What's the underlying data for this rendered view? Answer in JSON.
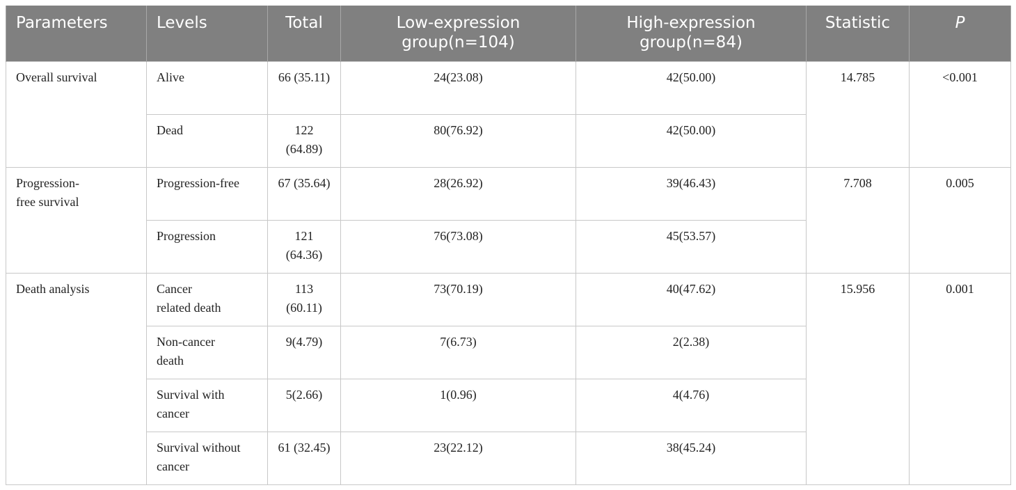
{
  "columns": [
    "Parameters",
    "Levels",
    "Total",
    "Low-expression group(n=104)",
    "High-expression group(n=84)",
    "Statistic",
    "P"
  ],
  "groups": [
    {
      "parameter": "Overall survival",
      "statistic": "14.785",
      "p": "<0.001",
      "rows": [
        {
          "level": "Alive",
          "total": "66 (35.11)",
          "low": "24(23.08)",
          "high": "42(50.00)"
        },
        {
          "level": "Dead",
          "total": "122 (64.89)",
          "low": "80(76.92)",
          "high": "42(50.00)"
        }
      ]
    },
    {
      "parameter": "Progression-free survival",
      "statistic": "7.708",
      "p": "0.005",
      "rows": [
        {
          "level": "Progression-free",
          "total": "67 (35.64)",
          "low": "28(26.92)",
          "high": "39(46.43)"
        },
        {
          "level": "Progression",
          "total": "121 (64.36)",
          "low": "76(73.08)",
          "high": "45(53.57)"
        }
      ]
    },
    {
      "parameter": "Death analysis",
      "statistic": "15.956",
      "p": "0.001",
      "rows": [
        {
          "level": "Cancer related death",
          "total": "113 (60.11)",
          "low": "73(70.19)",
          "high": "40(47.62)"
        },
        {
          "level": "Non-cancer death",
          "total": "9(4.79)",
          "low": "7(6.73)",
          "high": "2(2.38)"
        },
        {
          "level": "Survival with cancer",
          "total": "5(2.66)",
          "low": "1(0.96)",
          "high": "4(4.76)"
        },
        {
          "level": "Survival without cancer",
          "total": "61 (32.45)",
          "low": "23(22.12)",
          "high": "38(45.24)"
        }
      ]
    }
  ]
}
